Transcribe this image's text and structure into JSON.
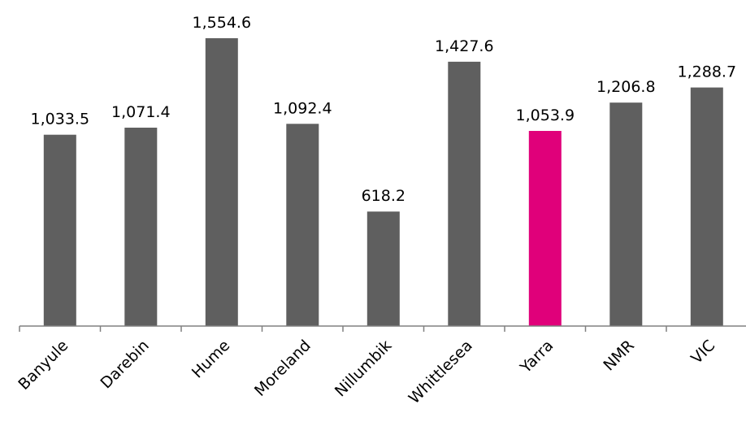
{
  "chart_data": {
    "type": "bar",
    "categories": [
      "Banyule",
      "Darebin",
      "Hume",
      "Moreland",
      "Nillumbik",
      "Whittlesea",
      "Yarra",
      "NMR",
      "VIC"
    ],
    "values": [
      1033.5,
      1071.4,
      1554.6,
      1092.4,
      618.2,
      1427.6,
      1053.9,
      1206.8,
      1288.7
    ],
    "value_labels": [
      "1,033.5",
      "1,071.4",
      "1,554.6",
      "1,092.4",
      "618.2",
      "1,427.6",
      "1,053.9",
      "1,206.8",
      "1,288.7"
    ],
    "title": "",
    "xlabel": "",
    "ylabel": "",
    "ylim": [
      0,
      1600
    ],
    "grid": false,
    "legend": "none",
    "colors": {
      "default_bar": "#5f5f5f",
      "highlight_bar": "#e0007a",
      "axis": "#808080"
    },
    "highlight_category": "Yarra"
  }
}
